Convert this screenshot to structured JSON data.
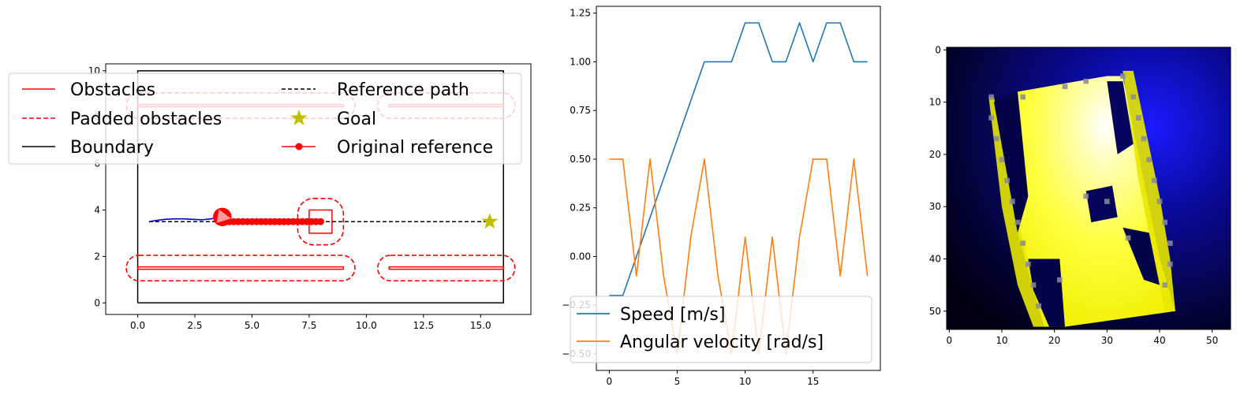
{
  "chart_data": [
    {
      "type": "line",
      "panel": "map",
      "xlim": [
        -1.4,
        17.2
      ],
      "ylim": [
        -0.5,
        10.3
      ],
      "xticks": [
        "0.0",
        "2.5",
        "5.0",
        "7.5",
        "10.0",
        "12.5",
        "15.0"
      ],
      "xtick_values": [
        0,
        2.5,
        5,
        7.5,
        10,
        12.5,
        15
      ],
      "yticks": [
        "0",
        "2",
        "4",
        "6",
        "8",
        "10"
      ],
      "ytick_values": [
        0,
        2,
        4,
        6,
        8,
        10
      ],
      "boundary": [
        [
          0,
          0
        ],
        [
          16,
          0
        ],
        [
          16,
          10
        ],
        [
          0,
          10
        ],
        [
          0,
          0
        ]
      ],
      "obstacles": [
        {
          "x0": 0,
          "x1": 9,
          "y0": 1.45,
          "y1": 1.55
        },
        {
          "x0": 11,
          "x1": 16,
          "y0": 1.45,
          "y1": 1.55
        },
        {
          "x0": 0,
          "x1": 9,
          "y0": 8.45,
          "y1": 8.55
        },
        {
          "x0": 11,
          "x1": 16,
          "y0": 8.45,
          "y1": 8.55
        },
        {
          "x0": 7.5,
          "x1": 8.5,
          "y0": 3.0,
          "y1": 4.0
        }
      ],
      "padded_obstacles": [
        {
          "x0": -0.5,
          "x1": 9.5,
          "y0": 0.95,
          "y1": 2.05
        },
        {
          "x0": 10.5,
          "x1": 16.5,
          "y0": 0.95,
          "y1": 2.05
        },
        {
          "x0": -0.5,
          "x1": 9.5,
          "y0": 7.95,
          "y1": 9.05
        },
        {
          "x0": 10.5,
          "x1": 16.5,
          "y0": 7.95,
          "y1": 9.05
        },
        {
          "x0": 7.0,
          "x1": 9.0,
          "y0": 2.5,
          "y1": 4.5
        }
      ],
      "reference_path": {
        "x": [
          0.5,
          15.4
        ],
        "y": [
          3.5,
          3.5
        ]
      },
      "goal": {
        "x": 15.4,
        "y": 3.5
      },
      "original_reference": {
        "x": [
          3.8,
          4.0,
          4.2,
          4.4,
          4.6,
          4.8,
          5.0,
          5.2,
          5.4,
          5.6,
          5.8,
          6.0,
          6.2,
          6.4,
          6.6,
          6.8,
          7.0,
          7.2,
          7.4,
          7.6,
          7.8,
          8.0
        ],
        "y": [
          3.5,
          3.5,
          3.5,
          3.5,
          3.5,
          3.5,
          3.5,
          3.5,
          3.5,
          3.5,
          3.5,
          3.5,
          3.5,
          3.5,
          3.5,
          3.5,
          3.5,
          3.5,
          3.5,
          3.5,
          3.5,
          3.5
        ]
      },
      "trajectory": {
        "x": [
          0.5,
          0.8,
          1.2,
          1.6,
          2.0,
          2.4,
          2.8,
          3.2,
          3.5,
          3.7
        ],
        "y": [
          3.5,
          3.55,
          3.6,
          3.62,
          3.62,
          3.6,
          3.58,
          3.62,
          3.66,
          3.7
        ]
      },
      "robot": {
        "x": 3.7,
        "y": 3.7,
        "radius": 0.45,
        "heading_deg": -10
      },
      "legend": {
        "location": "upper-left",
        "col1": [
          "Obstacles",
          "Padded obstacles",
          "Boundary"
        ],
        "col2": [
          "Reference path",
          "Goal",
          "Original reference"
        ]
      },
      "colors": {
        "obstacle": "#ff0000",
        "trajectory": "#0000cc",
        "robot_fill": "#ff0000",
        "robot_arrow": "#ff9a9a",
        "goal": "#bfbf00",
        "boundary": "#000000"
      }
    },
    {
      "type": "line",
      "panel": "controls",
      "xlim": [
        -0.95,
        19.95
      ],
      "ylim": [
        -0.585,
        1.285
      ],
      "xticks": [
        "0",
        "5",
        "10",
        "15"
      ],
      "xtick_values": [
        0,
        5,
        10,
        15
      ],
      "yticks": [
        "−0.50",
        "−0.25",
        "0.00",
        "0.25",
        "0.50",
        "0.75",
        "1.00",
        "1.25"
      ],
      "ytick_values": [
        -0.5,
        -0.25,
        0,
        0.25,
        0.5,
        0.75,
        1.0,
        1.25
      ],
      "x": [
        0,
        1,
        2,
        3,
        4,
        5,
        6,
        7,
        8,
        9,
        10,
        11,
        12,
        13,
        14,
        15,
        16,
        17,
        18,
        19
      ],
      "series": [
        {
          "name": "Speed [m/s]",
          "color": "#1f77b4",
          "values": [
            -0.2,
            -0.2,
            0.0,
            0.2,
            0.4,
            0.6,
            0.8,
            1.0,
            1.0,
            1.0,
            1.2,
            1.2,
            1.0,
            1.0,
            1.2,
            1.0,
            1.2,
            1.2,
            1.0,
            1.0
          ]
        },
        {
          "name": "Angular velocity [rad/s]",
          "color": "#ff7f0e",
          "values": [
            0.5,
            0.5,
            -0.1,
            0.5,
            -0.1,
            -0.5,
            0.1,
            0.5,
            -0.1,
            -0.5,
            0.1,
            -0.5,
            0.1,
            -0.5,
            0.1,
            0.5,
            0.5,
            -0.1,
            0.5,
            -0.1
          ]
        }
      ],
      "legend": {
        "location": "lower-left",
        "entries": [
          "Speed [m/s]",
          "Angular velocity [rad/s]"
        ]
      }
    },
    {
      "type": "heatmap",
      "panel": "occupancy",
      "xlim": [
        -0.5,
        53.5
      ],
      "ylim": [
        53.5,
        -0.5
      ],
      "xticks": [
        "0",
        "10",
        "20",
        "30",
        "40",
        "50"
      ],
      "xtick_values": [
        0,
        10,
        20,
        30,
        40,
        50
      ],
      "yticks": [
        "0",
        "10",
        "20",
        "30",
        "40",
        "50"
      ],
      "ytick_values": [
        0,
        10,
        20,
        30,
        40,
        50
      ],
      "grid_size": [
        54,
        54
      ],
      "colormap": "gnuplot2-like (black-blue-yellow-white)"
    }
  ]
}
